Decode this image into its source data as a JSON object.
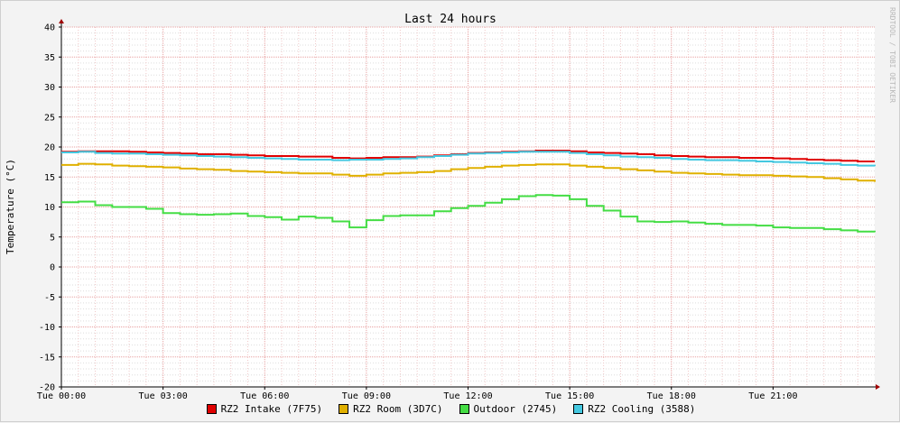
{
  "chart_data": {
    "type": "line",
    "title": "Last 24 hours",
    "ylabel": "Temperature (°C)",
    "watermark": "RRDTOOL / TOBI OETIKER",
    "ylim": [
      -20,
      40
    ],
    "yticks": [
      40,
      35,
      30,
      25,
      20,
      15,
      10,
      5,
      0,
      -5,
      -10,
      -15,
      -20
    ],
    "xlim": [
      0,
      24
    ],
    "xticks": [
      {
        "hour": 0,
        "label": "Tue 00:00"
      },
      {
        "hour": 3,
        "label": "Tue 03:00"
      },
      {
        "hour": 6,
        "label": "Tue 06:00"
      },
      {
        "hour": 9,
        "label": "Tue 09:00"
      },
      {
        "hour": 12,
        "label": "Tue 12:00"
      },
      {
        "hour": 15,
        "label": "Tue 15:00"
      },
      {
        "hour": 18,
        "label": "Tue 18:00"
      },
      {
        "hour": 21,
        "label": "Tue 21:00"
      }
    ],
    "grid": true,
    "legend_position": "bottom",
    "x": [
      0,
      0.5,
      1,
      1.5,
      2,
      2.5,
      3,
      3.5,
      4,
      4.5,
      5,
      5.5,
      6,
      6.5,
      7,
      7.5,
      8,
      8.5,
      9,
      9.5,
      10,
      10.5,
      11,
      11.5,
      12,
      12.5,
      13,
      13.5,
      14,
      14.5,
      15,
      15.5,
      16,
      16.5,
      17,
      17.5,
      18,
      18.5,
      19,
      19.5,
      20,
      20.5,
      21,
      21.5,
      22,
      22.5,
      23,
      23.5,
      24
    ],
    "series": [
      {
        "name": "RZ2 Intake (7F75)",
        "color": "#e00000",
        "values": [
          19.2,
          19.3,
          19.3,
          19.3,
          19.2,
          19.1,
          19.0,
          18.9,
          18.8,
          18.8,
          18.7,
          18.6,
          18.5,
          18.5,
          18.4,
          18.4,
          18.2,
          18.1,
          18.2,
          18.3,
          18.3,
          18.4,
          18.6,
          18.8,
          19.0,
          19.1,
          19.2,
          19.3,
          19.4,
          19.4,
          19.3,
          19.1,
          19.0,
          18.9,
          18.8,
          18.6,
          18.5,
          18.4,
          18.3,
          18.3,
          18.2,
          18.2,
          18.1,
          18.0,
          17.9,
          17.8,
          17.7,
          17.6,
          17.6
        ]
      },
      {
        "name": "RZ2 Room (3D7C)",
        "color": "#e0b000",
        "values": [
          17.0,
          17.2,
          17.1,
          16.9,
          16.8,
          16.7,
          16.6,
          16.4,
          16.3,
          16.2,
          16.0,
          15.9,
          15.8,
          15.7,
          15.6,
          15.6,
          15.4,
          15.2,
          15.4,
          15.6,
          15.7,
          15.8,
          16.0,
          16.3,
          16.5,
          16.7,
          16.9,
          17.0,
          17.1,
          17.1,
          16.9,
          16.7,
          16.5,
          16.3,
          16.1,
          15.9,
          15.7,
          15.6,
          15.5,
          15.4,
          15.3,
          15.3,
          15.2,
          15.1,
          15.0,
          14.8,
          14.6,
          14.4,
          14.2
        ]
      },
      {
        "name": "Outdoor (2745)",
        "color": "#44dd44",
        "values": [
          10.8,
          10.9,
          10.3,
          10.0,
          10.0,
          9.7,
          9.0,
          8.8,
          8.7,
          8.8,
          8.9,
          8.5,
          8.3,
          7.9,
          8.4,
          8.2,
          7.6,
          6.6,
          7.8,
          8.5,
          8.6,
          8.6,
          9.3,
          9.8,
          10.2,
          10.7,
          11.3,
          11.8,
          12.0,
          11.9,
          11.3,
          10.2,
          9.4,
          8.4,
          7.6,
          7.5,
          7.6,
          7.4,
          7.2,
          7.0,
          7.0,
          6.9,
          6.6,
          6.5,
          6.5,
          6.3,
          6.1,
          5.9,
          5.8
        ]
      },
      {
        "name": "RZ2 Cooling (3588)",
        "color": "#44c8e0",
        "values": [
          19.1,
          19.2,
          19.0,
          18.9,
          18.9,
          18.8,
          18.7,
          18.6,
          18.5,
          18.4,
          18.3,
          18.2,
          18.1,
          18.0,
          17.9,
          17.9,
          17.8,
          17.9,
          17.9,
          18.0,
          18.1,
          18.3,
          18.5,
          18.7,
          18.9,
          19.0,
          19.1,
          19.2,
          19.2,
          19.2,
          19.0,
          18.8,
          18.6,
          18.4,
          18.3,
          18.2,
          18.0,
          17.9,
          17.8,
          17.8,
          17.7,
          17.6,
          17.5,
          17.4,
          17.3,
          17.2,
          17.0,
          16.9,
          16.8
        ]
      }
    ]
  }
}
